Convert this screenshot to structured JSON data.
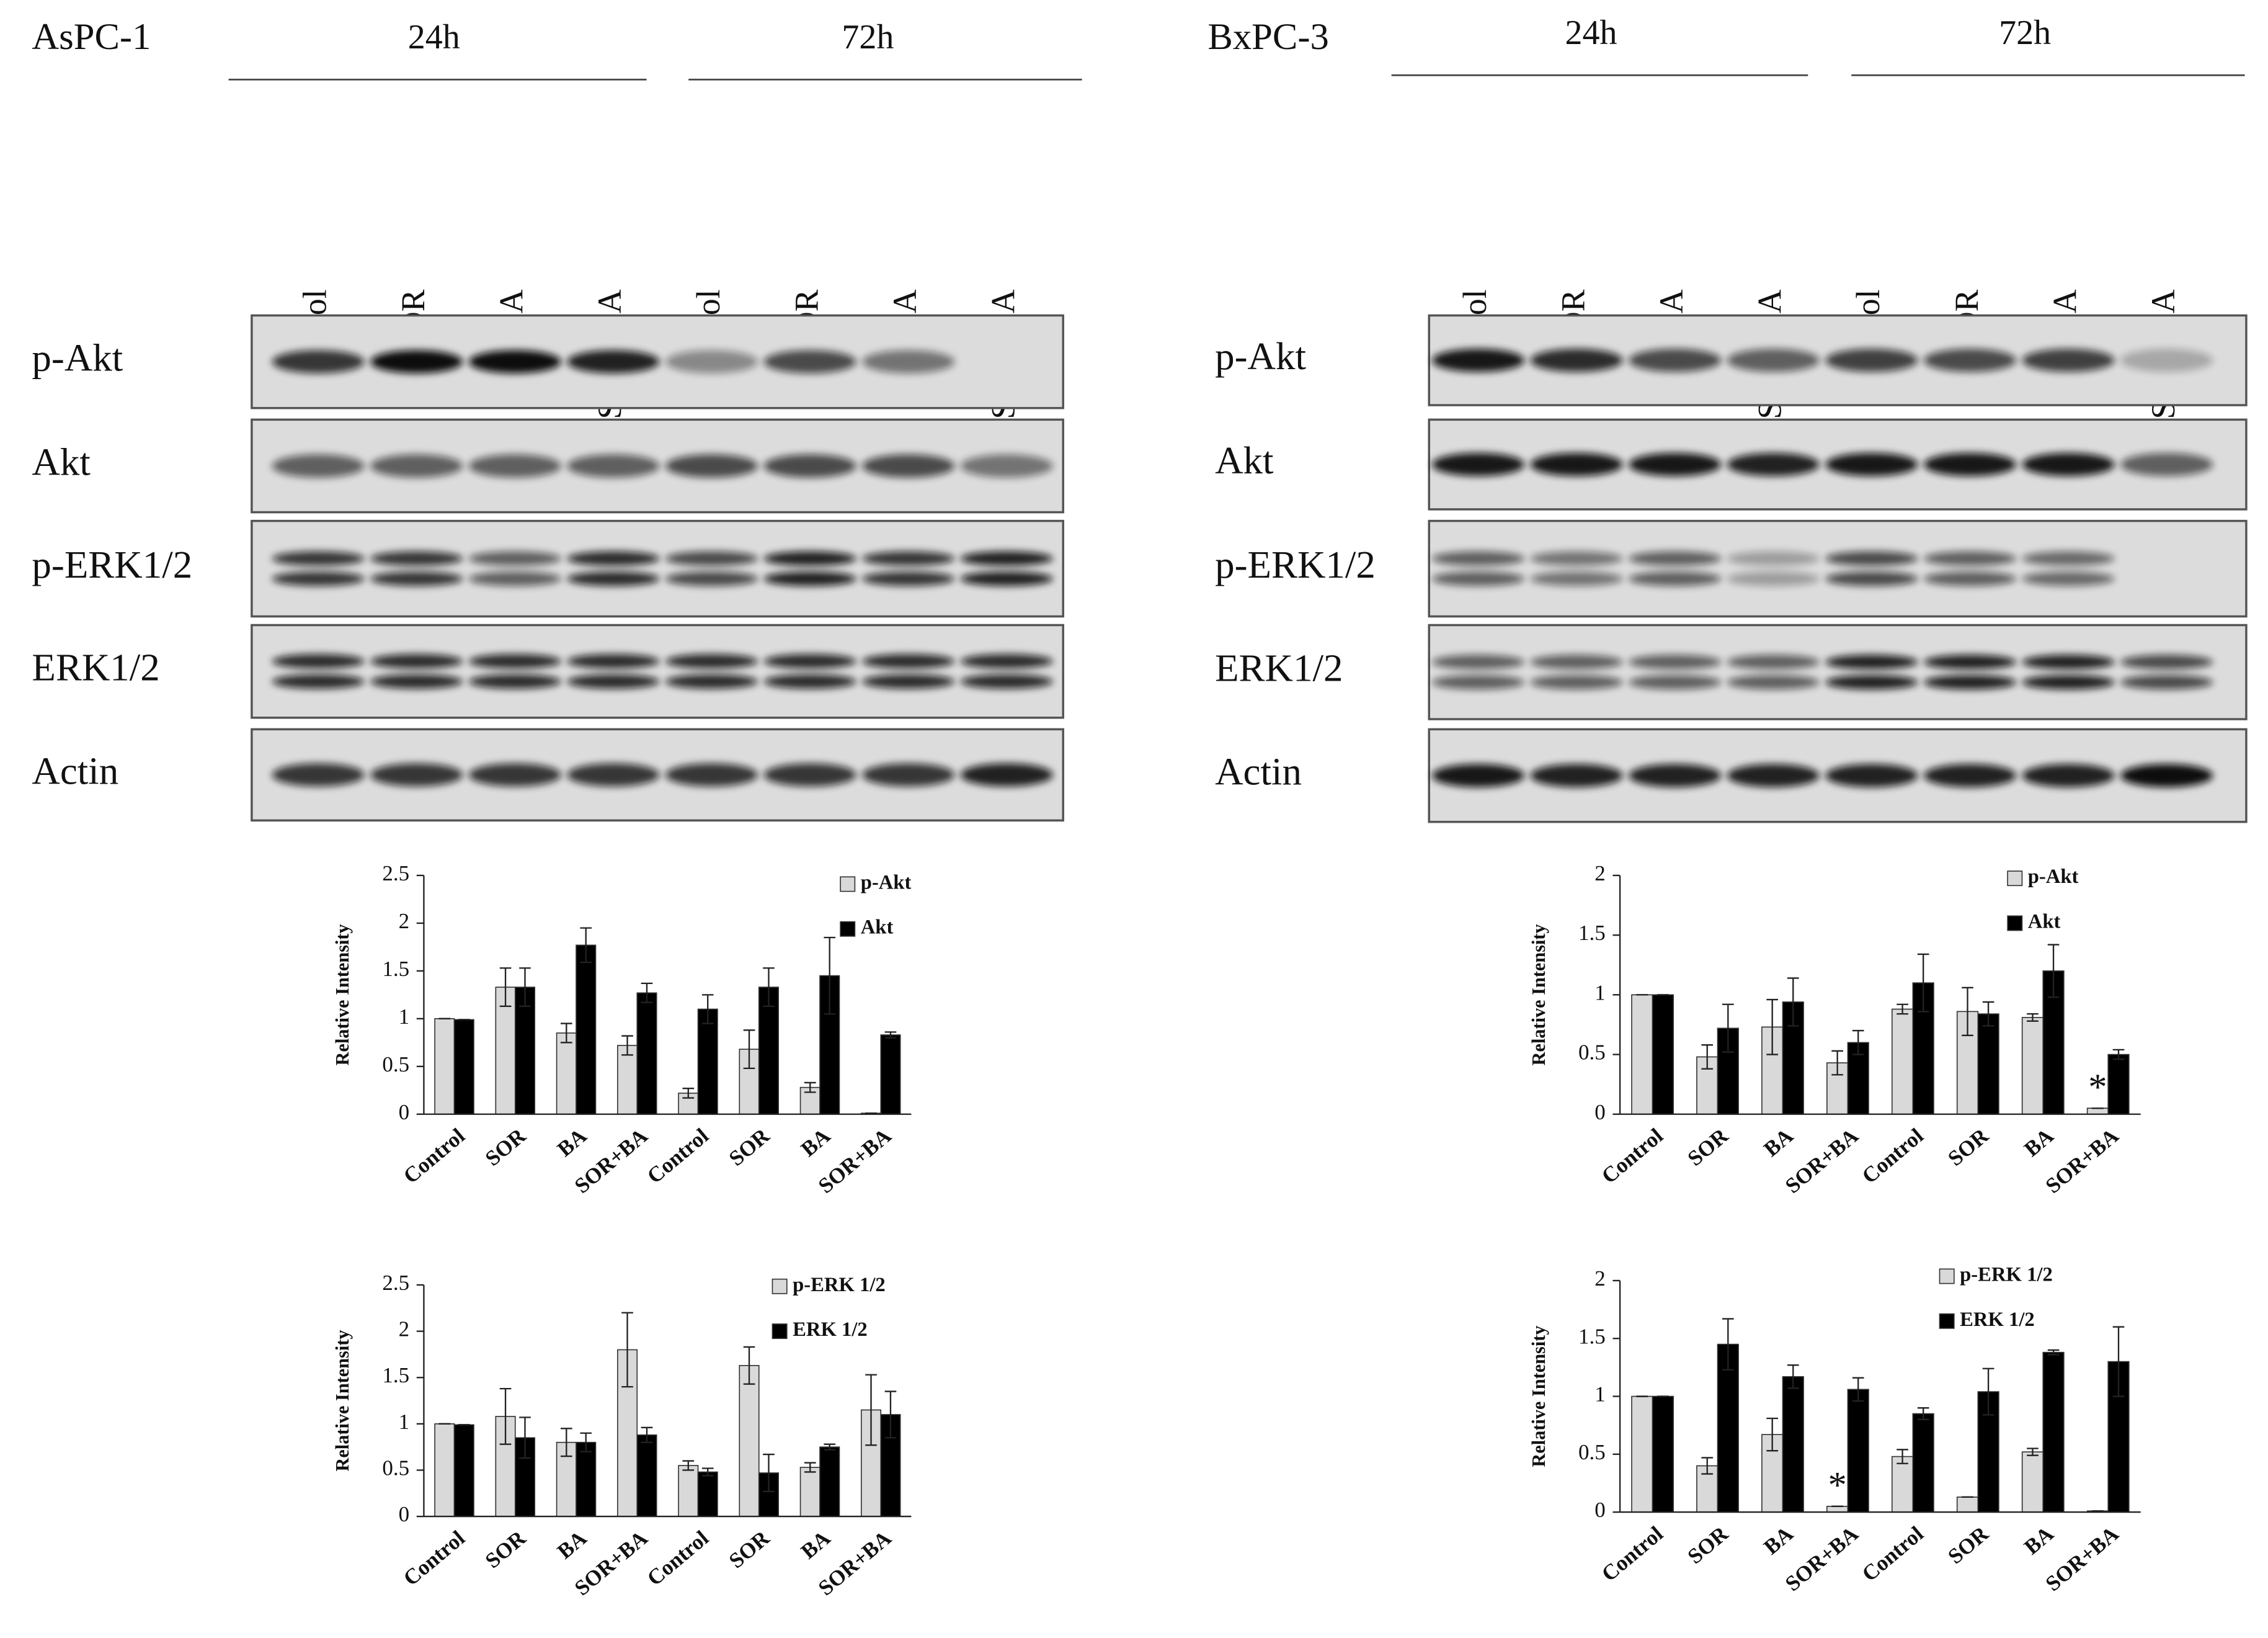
{
  "panels": [
    {
      "cell_line": "AsPC-1",
      "timepoints": [
        "24h",
        "72h"
      ],
      "lanes": [
        "Control",
        "SOR",
        "BA",
        "SOR+BA",
        "Control",
        "SOR",
        "BA",
        "SOR+BA"
      ],
      "blots": [
        "p-Akt",
        "Akt",
        "p-ERK1/2",
        "ERK1/2",
        "Actin"
      ]
    },
    {
      "cell_line": "BxPC-3",
      "timepoints": [
        "24h",
        "72h"
      ],
      "lanes": [
        "Control",
        "SOR",
        "BA",
        "SOR+BA",
        "Control",
        "SOR",
        "BA",
        "SOR+BA"
      ],
      "blots": [
        "p-Akt",
        "Akt",
        "p-ERK1/2",
        "ERK1/2",
        "Actin"
      ]
    }
  ],
  "chart_data": [
    {
      "type": "bar",
      "y_label": "Relative Intensity",
      "categories": [
        "Control",
        "SOR",
        "BA",
        "SOR+BA",
        "Control",
        "SOR",
        "BA",
        "SOR+BA"
      ],
      "series": [
        {
          "name": "p-Akt",
          "color": "#d9d9d9",
          "values": [
            1,
            1.33,
            0.85,
            0.72,
            0.22,
            0.68,
            0.28,
            0.01
          ],
          "errors": [
            0,
            0.2,
            0.1,
            0.1,
            0.05,
            0.2,
            0.05,
            0
          ]
        },
        {
          "name": "Akt",
          "color": "#000000",
          "values": [
            0.99,
            1.33,
            1.77,
            1.27,
            1.1,
            1.33,
            1.45,
            0.83
          ],
          "errors": [
            0,
            0.2,
            0.18,
            0.1,
            0.15,
            0.2,
            0.4,
            0.03
          ]
        }
      ],
      "ylim": [
        0,
        2.5
      ],
      "yticks": [
        0,
        0.5,
        1,
        1.5,
        2,
        2.5
      ]
    },
    {
      "type": "bar",
      "y_label": "Relative Intensity",
      "categories": [
        "Control",
        "SOR",
        "BA",
        "SOR+BA",
        "Control",
        "SOR",
        "BA",
        "SOR+BA"
      ],
      "series": [
        {
          "name": "p-ERK 1/2",
          "color": "#d9d9d9",
          "values": [
            1,
            1.08,
            0.8,
            1.8,
            0.55,
            1.63,
            0.53,
            1.15
          ],
          "errors": [
            0,
            0.3,
            0.15,
            0.4,
            0.05,
            0.2,
            0.05,
            0.38
          ]
        },
        {
          "name": "ERK 1/2",
          "color": "#000000",
          "values": [
            0.99,
            0.85,
            0.8,
            0.88,
            0.48,
            0.47,
            0.75,
            1.1
          ],
          "errors": [
            0,
            0.22,
            0.1,
            0.08,
            0.04,
            0.2,
            0.03,
            0.25
          ]
        }
      ],
      "ylim": [
        0,
        2.5
      ],
      "yticks": [
        0,
        0.5,
        1,
        1.5,
        2,
        2.5
      ]
    },
    {
      "type": "bar",
      "y_label": "Relative Intensity",
      "categories": [
        "Control",
        "SOR",
        "BA",
        "SOR+BA",
        "Control",
        "SOR",
        "BA",
        "SOR+BA"
      ],
      "series": [
        {
          "name": "p-Akt",
          "color": "#d9d9d9",
          "values": [
            1,
            0.48,
            0.73,
            0.43,
            0.88,
            0.86,
            0.81,
            0.05
          ],
          "errors": [
            0,
            0.1,
            0.23,
            0.1,
            0.04,
            0.2,
            0.03,
            0
          ],
          "annotations": [
            null,
            null,
            null,
            null,
            null,
            null,
            null,
            "*"
          ]
        },
        {
          "name": "Akt",
          "color": "#000000",
          "values": [
            1,
            0.72,
            0.94,
            0.6,
            1.1,
            0.84,
            1.2,
            0.5
          ],
          "errors": [
            0,
            0.2,
            0.2,
            0.1,
            0.24,
            0.1,
            0.22,
            0.04
          ]
        }
      ],
      "ylim": [
        0,
        2
      ],
      "yticks": [
        0,
        0.5,
        1,
        1.5,
        2
      ]
    },
    {
      "type": "bar",
      "y_label": "Relative Intensity",
      "categories": [
        "Control",
        "SOR",
        "BA",
        "SOR+BA",
        "Control",
        "SOR",
        "BA",
        "SOR+BA"
      ],
      "series": [
        {
          "name": "p-ERK 1/2",
          "color": "#d9d9d9",
          "values": [
            1,
            0.4,
            0.67,
            0.05,
            0.48,
            0.13,
            0.52,
            0.01
          ],
          "errors": [
            0,
            0.07,
            0.14,
            0,
            0.06,
            0,
            0.03,
            0
          ],
          "annotations": [
            null,
            null,
            null,
            "*",
            null,
            null,
            null,
            null
          ]
        },
        {
          "name": "ERK 1/2",
          "color": "#000000",
          "values": [
            1,
            1.45,
            1.17,
            1.06,
            0.85,
            1.04,
            1.38,
            1.3
          ],
          "errors": [
            0,
            0.22,
            0.1,
            0.1,
            0.05,
            0.2,
            0.02,
            0.3
          ]
        }
      ],
      "ylim": [
        0,
        2
      ],
      "yticks": [
        0,
        0.5,
        1,
        1.5,
        2
      ]
    }
  ]
}
